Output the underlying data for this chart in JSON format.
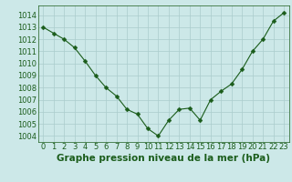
{
  "x": [
    0,
    1,
    2,
    3,
    4,
    5,
    6,
    7,
    8,
    9,
    10,
    11,
    12,
    13,
    14,
    15,
    16,
    17,
    18,
    19,
    20,
    21,
    22,
    23
  ],
  "y": [
    1013.0,
    1012.5,
    1012.0,
    1011.3,
    1010.2,
    1009.0,
    1008.0,
    1007.3,
    1006.2,
    1005.8,
    1004.6,
    1004.0,
    1005.3,
    1006.2,
    1006.3,
    1005.3,
    1007.0,
    1007.7,
    1008.3,
    1009.5,
    1011.0,
    1012.0,
    1013.5,
    1014.2
  ],
  "line_color": "#1a5c1a",
  "marker": "D",
  "marker_size": 2.5,
  "bg_color": "#cce8e8",
  "grid_color": "#aacccc",
  "xlabel": "Graphe pression niveau de la mer (hPa)",
  "xlabel_fontsize": 7.5,
  "xlabel_color": "#1a5c1a",
  "xlabel_bold": true,
  "ylim": [
    1003.5,
    1014.8
  ],
  "xlim": [
    -0.5,
    23.5
  ],
  "yticks": [
    1004,
    1005,
    1006,
    1007,
    1008,
    1009,
    1010,
    1011,
    1012,
    1013,
    1014
  ],
  "xticks": [
    0,
    1,
    2,
    3,
    4,
    5,
    6,
    7,
    8,
    9,
    10,
    11,
    12,
    13,
    14,
    15,
    16,
    17,
    18,
    19,
    20,
    21,
    22,
    23
  ],
  "tick_fontsize": 6,
  "tick_color": "#1a5c1a",
  "axis_color": "#1a5c1a",
  "linewidth": 0.8
}
